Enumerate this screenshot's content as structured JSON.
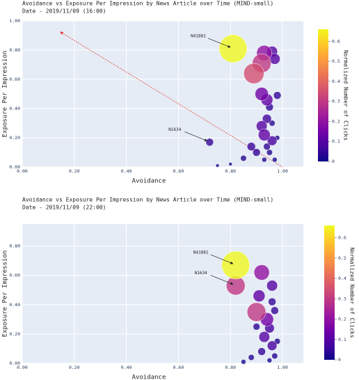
{
  "chart_data": [
    {
      "type": "scatter",
      "title": "Avoidance vs Exposure Per Impression by News Article over Time (MIND-small)",
      "subtitle": "Date - 2019/11/09 (16:00)",
      "x_label": "Avoidance",
      "y_label": "Exposure Per Impression",
      "colorbar_title": "Normalized Number of Clicks",
      "colorscale": "plasma",
      "xlim": [
        0,
        1.08
      ],
      "ylim": [
        0,
        1.0
      ],
      "clim": [
        0,
        0.66
      ],
      "xticks": [
        {
          "value": 0,
          "label": "0.00"
        },
        {
          "value": 0.2,
          "label": "0.20"
        },
        {
          "value": 0.4,
          "label": "0.40"
        },
        {
          "value": 0.6,
          "label": "0.60"
        },
        {
          "value": 0.8,
          "label": "0.80"
        },
        {
          "value": 1.0,
          "label": "1.00"
        }
      ],
      "yticks": [
        {
          "value": 0,
          "label": "0.00"
        },
        {
          "value": 0.2,
          "label": "0.20"
        },
        {
          "value": 0.4,
          "label": "0.40"
        },
        {
          "value": 0.6,
          "label": "0.60"
        },
        {
          "value": 0.8,
          "label": "0.80"
        },
        {
          "value": 1.0,
          "label": "1.00"
        }
      ],
      "cticks": [
        0,
        0.1,
        0.2,
        0.3,
        0.4,
        0.5,
        0.6
      ],
      "grid": true,
      "trend": {
        "x": [
          0.15,
          1.0
        ],
        "y": [
          0.92,
          0.0
        ],
        "color": "#e8392f"
      },
      "x": [
        0.81,
        0.89,
        0.92,
        0.93,
        0.96,
        0.97,
        0.92,
        0.94,
        0.98,
        0.72,
        0.95,
        0.94,
        0.92,
        0.93,
        0.96,
        0.88,
        0.9,
        0.95,
        0.97,
        0.93,
        0.85,
        0.8,
        0.75,
        0.98,
        0.96,
        0.94
      ],
      "values": [
        0.81,
        0.64,
        0.71,
        0.78,
        0.79,
        0.74,
        0.5,
        0.46,
        0.49,
        0.17,
        0.41,
        0.33,
        0.28,
        0.22,
        0.18,
        0.14,
        0.1,
        0.1,
        0.05,
        0.05,
        0.06,
        0.02,
        0.01,
        0.2,
        0.3,
        0.14
      ],
      "clicks": [
        0.66,
        0.35,
        0.3,
        0.2,
        0.1,
        0.1,
        0.15,
        0.12,
        0.05,
        0.05,
        0.05,
        0.07,
        0.1,
        0.12,
        0.08,
        0.06,
        0.05,
        0.03,
        0.02,
        0.02,
        0.03,
        0.01,
        0.01,
        0.02,
        0.03,
        0.04
      ],
      "labels": [
        "N41881",
        null,
        null,
        null,
        null,
        null,
        null,
        null,
        null,
        "N1634",
        null,
        null,
        null,
        null,
        null,
        null,
        null,
        null,
        null,
        null,
        null,
        null,
        null,
        null,
        null,
        null
      ]
    },
    {
      "type": "scatter",
      "title": "Avoidance vs Exposure Per Impression by News Article over Time (MIND-small)",
      "subtitle": "Date - 2019/11/09 (22:00)",
      "x_label": "Avoidance",
      "y_label": "Exposure Per Impression",
      "colorbar_title": "Normalized Number of Clicks",
      "colorscale": "plasma",
      "xlim": [
        0,
        1.08
      ],
      "ylim": [
        0,
        0.95
      ],
      "clim": [
        0,
        0.66
      ],
      "xticks": [
        {
          "value": 0,
          "label": "0.00"
        },
        {
          "value": 0.2,
          "label": "0.20"
        },
        {
          "value": 0.4,
          "label": "0.40"
        },
        {
          "value": 0.6,
          "label": "0.60"
        },
        {
          "value": 0.8,
          "label": "0.80"
        },
        {
          "value": 1.0,
          "label": "1.00"
        }
      ],
      "yticks": [
        {
          "value": 0,
          "label": "0.00"
        },
        {
          "value": 0.2,
          "label": "0.20"
        },
        {
          "value": 0.4,
          "label": "0.40"
        },
        {
          "value": 0.6,
          "label": "0.60"
        },
        {
          "value": 0.8,
          "label": "0.80"
        }
      ],
      "cticks": [
        0,
        0.1,
        0.2,
        0.3,
        0.4,
        0.5,
        0.6
      ],
      "grid": true,
      "x": [
        0.82,
        0.82,
        0.92,
        0.96,
        0.91,
        0.9,
        0.94,
        0.96,
        0.97,
        0.93,
        0.95,
        0.96,
        0.92,
        0.97,
        0.88,
        0.85,
        0.95,
        0.98,
        0.9
      ],
      "values": [
        0.67,
        0.53,
        0.62,
        0.53,
        0.46,
        0.35,
        0.3,
        0.42,
        0.36,
        0.18,
        0.24,
        0.12,
        0.08,
        0.05,
        0.04,
        0.01,
        0.02,
        0.15,
        0.25
      ],
      "clicks": [
        0.66,
        0.3,
        0.2,
        0.1,
        0.12,
        0.3,
        0.15,
        0.05,
        0.05,
        0.1,
        0.08,
        0.08,
        0.05,
        0.03,
        0.03,
        0.02,
        0.02,
        0.03,
        0.04
      ],
      "labels": [
        "N41881",
        "N1634",
        null,
        null,
        null,
        null,
        null,
        null,
        null,
        null,
        null,
        null,
        null,
        null,
        null,
        null,
        null,
        null,
        null
      ]
    }
  ]
}
